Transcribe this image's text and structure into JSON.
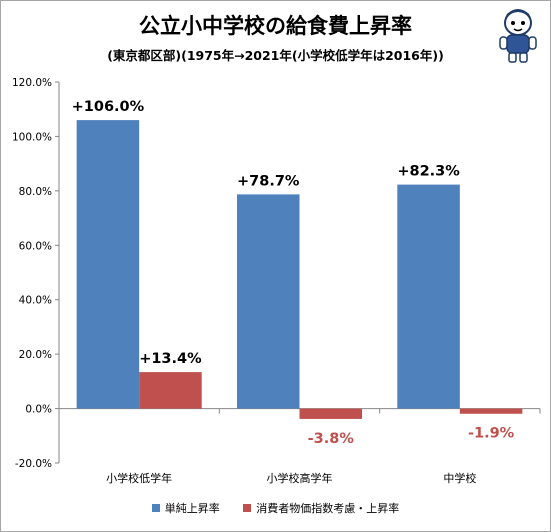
{
  "title": "公立小中学校の給食費上昇率",
  "subtitle": "(東京都区部)(1975年→2021年(小学校低学年は2016年))",
  "chart_data": {
    "type": "bar",
    "categories": [
      "小学校低学年",
      "小学校高学年",
      "中学校"
    ],
    "series": [
      {
        "name": "単純上昇率",
        "values": [
          106.0,
          78.7,
          82.3
        ],
        "labels": [
          "+106.0%",
          "+78.7%",
          "+82.3%"
        ],
        "color": "#4f81bd"
      },
      {
        "name": "消費者物価指数考慮・上昇率",
        "values": [
          13.4,
          -3.8,
          -1.9
        ],
        "labels": [
          "+13.4%",
          "-3.8%",
          "-1.9%"
        ],
        "color": "#c0504d"
      }
    ],
    "ylim": [
      -20,
      120
    ],
    "yticks": [
      -20,
      0,
      20,
      40,
      60,
      80,
      100,
      120
    ],
    "ytick_labels": [
      "-20.0%",
      "0.0%",
      "20.0%",
      "40.0%",
      "60.0%",
      "80.0%",
      "100.0%",
      "120.0%"
    ],
    "grid": false,
    "legend_position": "bottom",
    "label_colors": {
      "positive": "#000000",
      "negative": "#c0504d"
    }
  },
  "mascot_icon": "cartoon-mascot-icon"
}
